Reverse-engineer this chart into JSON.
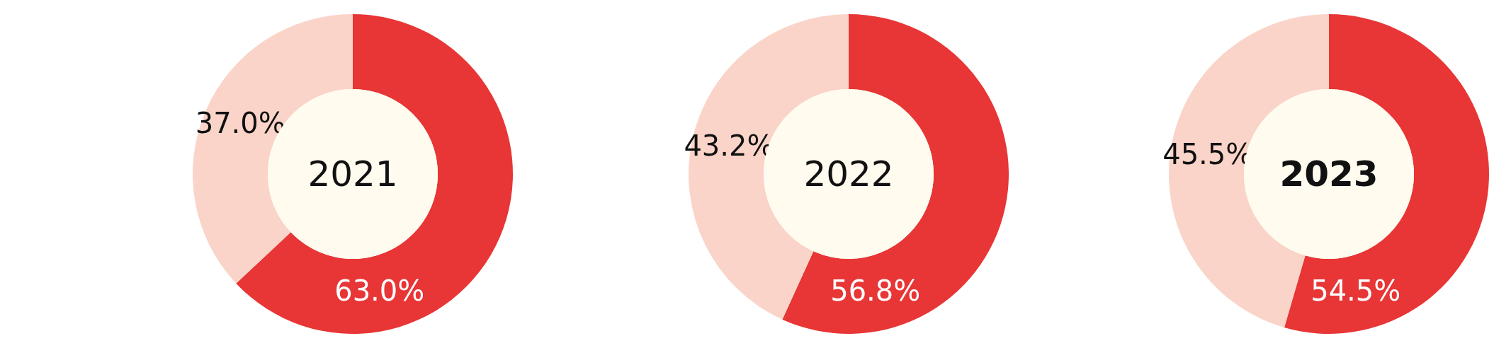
{
  "chart_data": [
    {
      "type": "donut",
      "title": "2021",
      "categories": [
        null,
        null
      ],
      "values": [
        63.0,
        37.0
      ],
      "colors": [
        "#e83535",
        "#fad4c8"
      ],
      "value_labels": [
        "63.0%",
        "37.0%"
      ],
      "legend": false
    },
    {
      "type": "donut",
      "title": "2022",
      "categories": [
        null,
        null
      ],
      "values": [
        56.8,
        43.2
      ],
      "colors": [
        "#e83535",
        "#fad4c8"
      ],
      "value_labels": [
        "56.8%",
        "43.2%"
      ],
      "legend": false
    },
    {
      "type": "donut",
      "title": "2023",
      "categories": [
        null,
        null
      ],
      "values": [
        54.5,
        45.5
      ],
      "colors": [
        "#e83535",
        "#fad4c8"
      ],
      "value_labels": [
        "54.5%",
        "45.5%"
      ],
      "legend": false
    }
  ]
}
